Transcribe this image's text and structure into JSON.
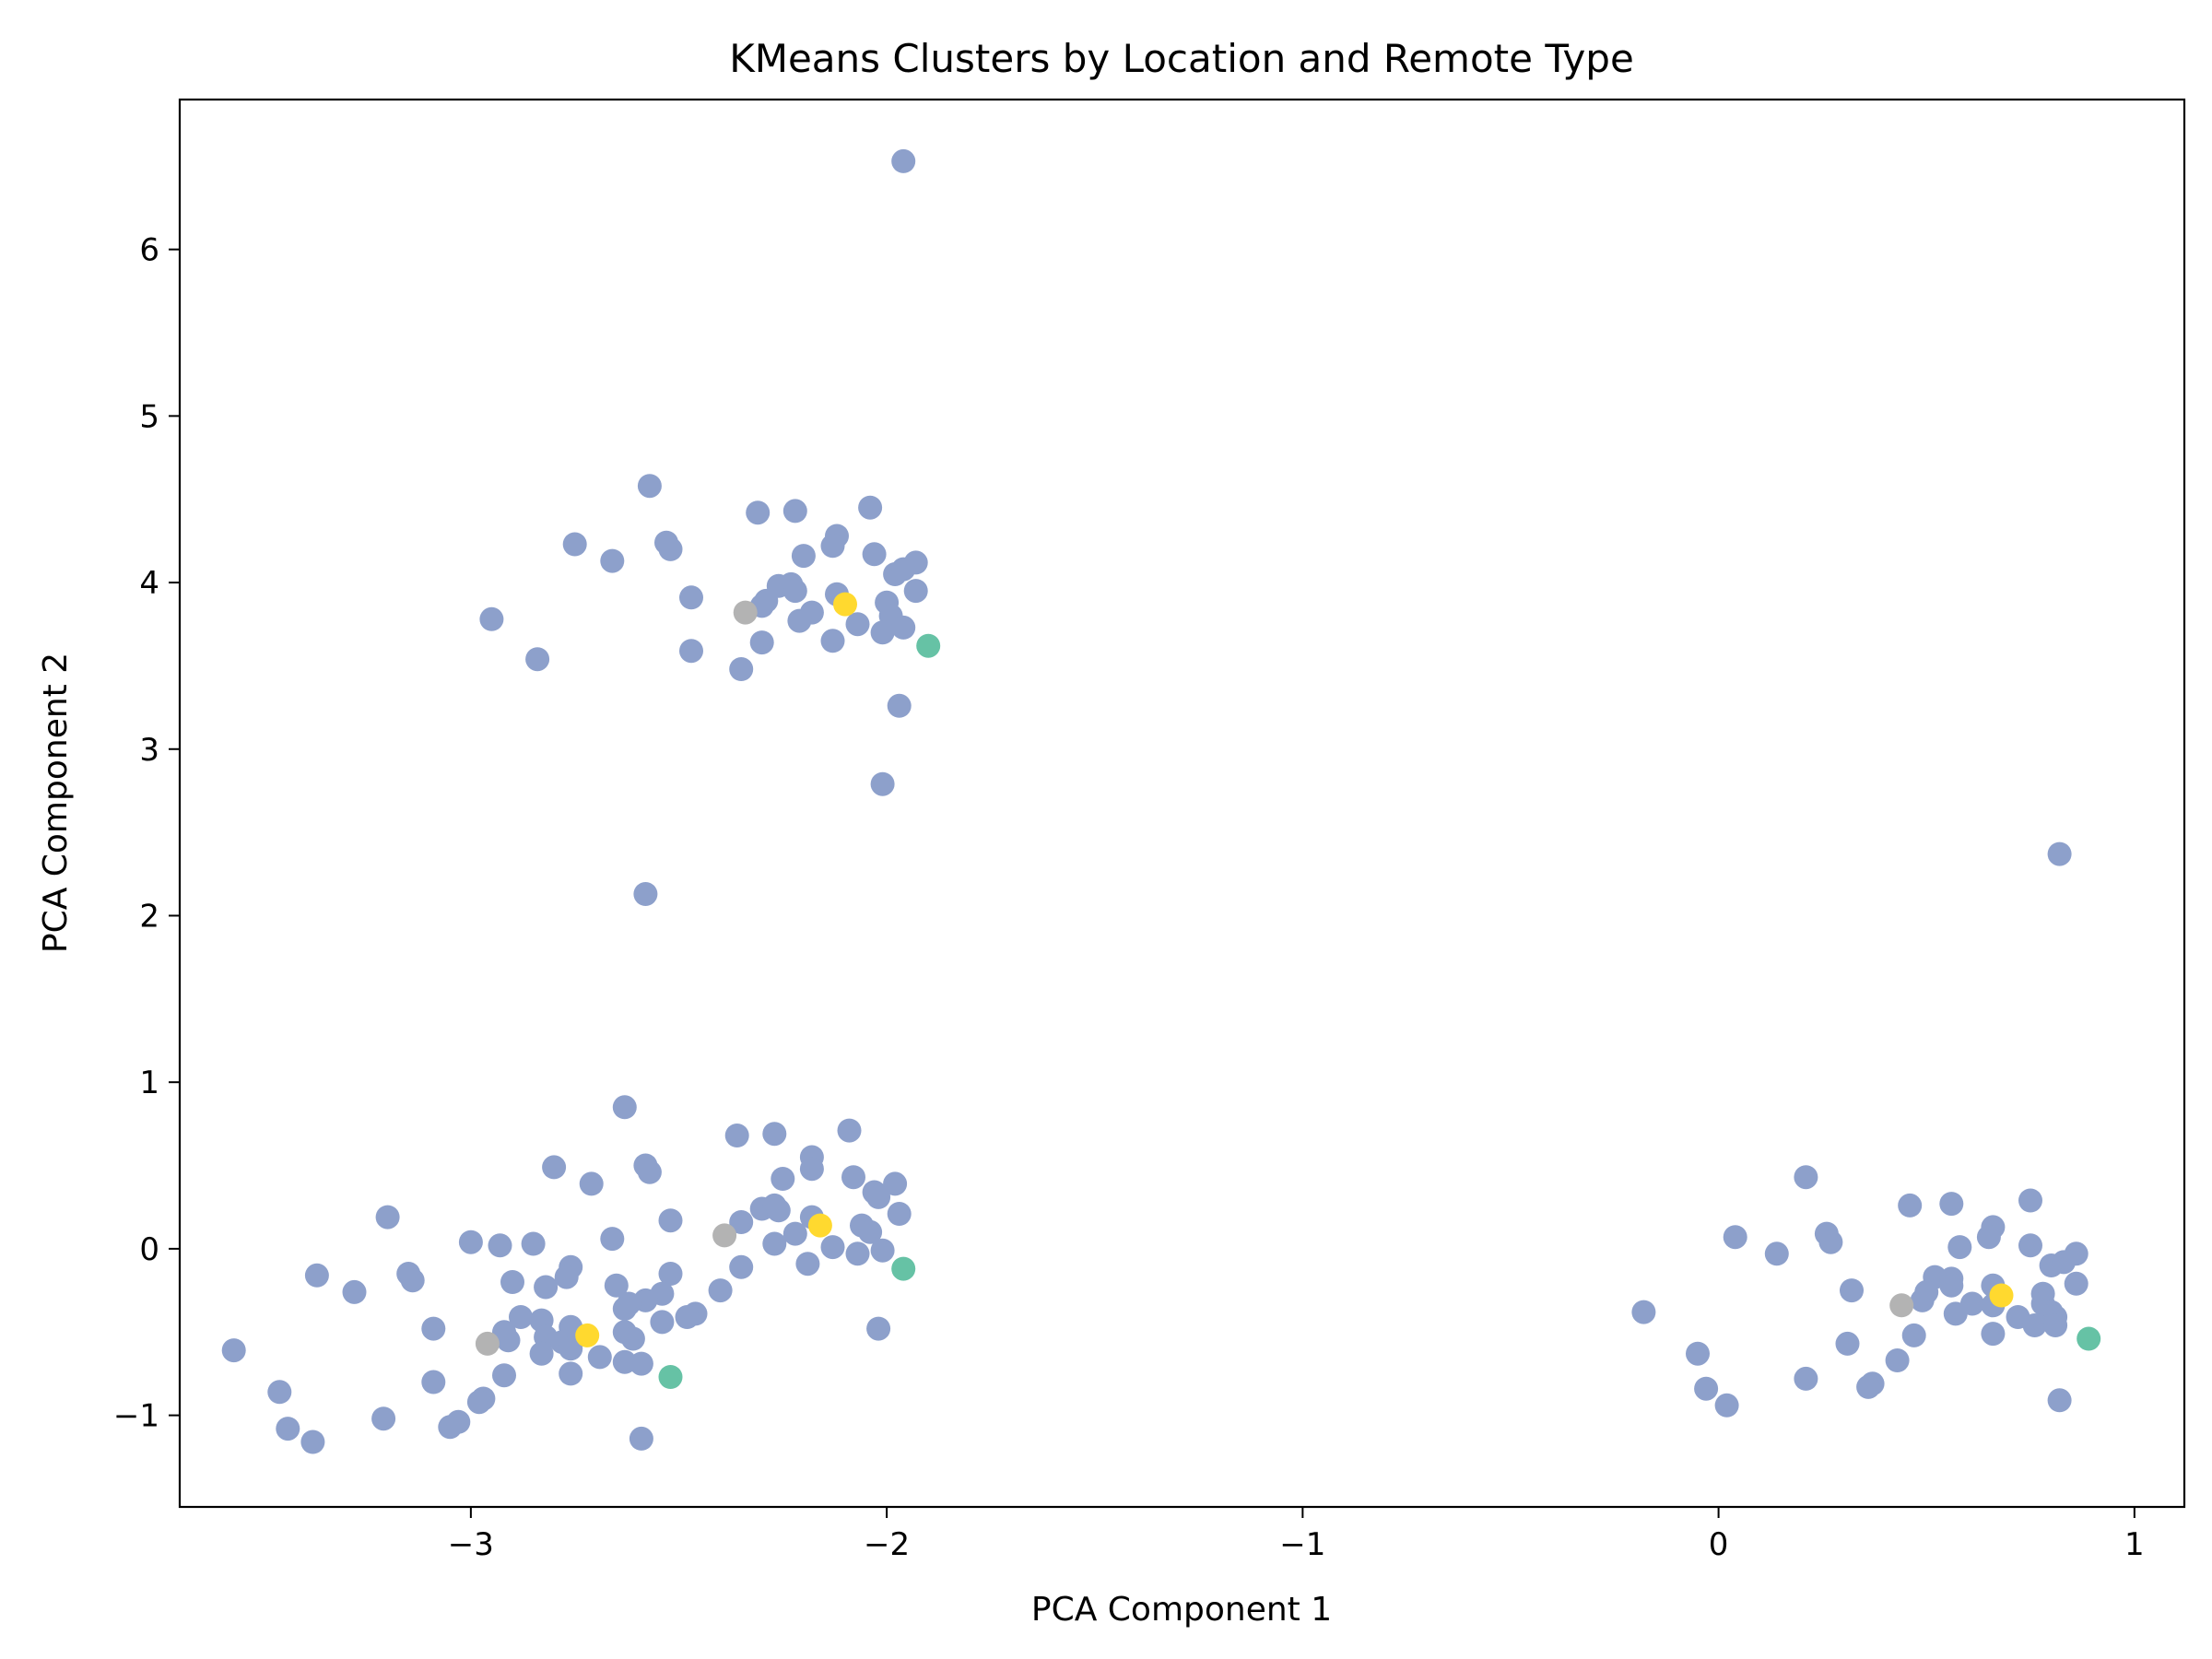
{
  "chart_data": {
    "type": "scatter",
    "title": "KMeans Clusters by Location and Remote Type",
    "xlabel": "PCA Component 1",
    "ylabel": "PCA Component 2",
    "xlim": [
      -3.7,
      1.12
    ],
    "ylim": [
      -1.55,
      6.9
    ],
    "xticks": [
      -3,
      -2,
      -1,
      0,
      1
    ],
    "yticks": [
      -1,
      0,
      1,
      2,
      3,
      4,
      5,
      6
    ],
    "grid": false,
    "legend": false,
    "colors": {
      "cluster_0": "#66c2a5",
      "cluster_1": "#8da0cb",
      "cluster_2": "#ffd92f",
      "cluster_3": "#b3b3b3"
    },
    "series": [
      {
        "color": "#8da0cb",
        "points": [
          [
            -1.96,
            6.53
          ],
          [
            -2.57,
            4.58
          ],
          [
            -2.31,
            4.42
          ],
          [
            -2.22,
            4.43
          ],
          [
            -2.04,
            4.45
          ],
          [
            -2.75,
            4.23
          ],
          [
            -2.66,
            4.13
          ],
          [
            -2.53,
            4.24
          ],
          [
            -2.52,
            4.2
          ],
          [
            -2.12,
            4.28
          ],
          [
            -2.13,
            4.22
          ],
          [
            -2.2,
            4.16
          ],
          [
            -2.03,
            4.17
          ],
          [
            -1.93,
            4.12
          ],
          [
            -1.98,
            4.05
          ],
          [
            -1.96,
            4.08
          ],
          [
            -2.26,
            3.98
          ],
          [
            -2.23,
            3.99
          ],
          [
            -2.22,
            3.95
          ],
          [
            -2.47,
            3.91
          ],
          [
            -2.12,
            3.93
          ],
          [
            -2.29,
            3.89
          ],
          [
            -2.3,
            3.86
          ],
          [
            -1.93,
            3.95
          ],
          [
            -2.0,
            3.88
          ],
          [
            -2.18,
            3.82
          ],
          [
            -2.21,
            3.77
          ],
          [
            -2.07,
            3.75
          ],
          [
            -1.99,
            3.8
          ],
          [
            -2.01,
            3.7
          ],
          [
            -1.96,
            3.73
          ],
          [
            -2.95,
            3.78
          ],
          [
            -2.13,
            3.65
          ],
          [
            -2.3,
            3.64
          ],
          [
            -2.47,
            3.59
          ],
          [
            -2.84,
            3.54
          ],
          [
            -2.35,
            3.48
          ],
          [
            -1.97,
            3.26
          ],
          [
            -2.01,
            2.79
          ],
          [
            -2.58,
            2.13
          ],
          [
            -2.63,
            0.85
          ],
          [
            -2.09,
            0.71
          ],
          [
            -2.27,
            0.69
          ],
          [
            -2.36,
            0.68
          ],
          [
            -2.18,
            0.55
          ],
          [
            -2.8,
            0.49
          ],
          [
            -2.58,
            0.5
          ],
          [
            -2.57,
            0.46
          ],
          [
            -2.18,
            0.48
          ],
          [
            -2.08,
            0.43
          ],
          [
            -2.25,
            0.42
          ],
          [
            -2.71,
            0.39
          ],
          [
            -1.98,
            0.39
          ],
          [
            -2.03,
            0.34
          ],
          [
            -2.02,
            0.31
          ],
          [
            -2.3,
            0.24
          ],
          [
            -2.27,
            0.26
          ],
          [
            -2.26,
            0.23
          ],
          [
            -1.97,
            0.21
          ],
          [
            -3.2,
            0.19
          ],
          [
            -2.18,
            0.19
          ],
          [
            -2.52,
            0.17
          ],
          [
            -2.35,
            0.16
          ],
          [
            -2.06,
            0.14
          ],
          [
            -2.04,
            0.1
          ],
          [
            -2.22,
            0.09
          ],
          [
            -2.27,
            0.03
          ],
          [
            -2.66,
            0.06
          ],
          [
            -3.0,
            0.04
          ],
          [
            -2.93,
            0.02
          ],
          [
            -2.85,
            0.03
          ],
          [
            -2.13,
            0.01
          ],
          [
            -2.07,
            -0.03
          ],
          [
            -2.01,
            -0.01
          ],
          [
            -2.19,
            -0.09
          ],
          [
            -2.35,
            -0.11
          ],
          [
            -2.76,
            -0.11
          ],
          [
            -3.37,
            -0.16
          ],
          [
            -3.15,
            -0.15
          ],
          [
            -3.14,
            -0.19
          ],
          [
            -2.9,
            -0.2
          ],
          [
            -2.77,
            -0.17
          ],
          [
            -2.52,
            -0.15
          ],
          [
            -2.82,
            -0.23
          ],
          [
            -2.65,
            -0.22
          ],
          [
            -3.28,
            -0.26
          ],
          [
            -2.4,
            -0.25
          ],
          [
            -2.54,
            -0.27
          ],
          [
            -2.58,
            -0.31
          ],
          [
            -2.62,
            -0.33
          ],
          [
            -2.63,
            -0.36
          ],
          [
            -2.46,
            -0.39
          ],
          [
            -2.48,
            -0.41
          ],
          [
            -2.54,
            -0.44
          ],
          [
            -2.88,
            -0.41
          ],
          [
            -2.83,
            -0.43
          ],
          [
            -2.76,
            -0.47
          ],
          [
            -3.09,
            -0.48
          ],
          [
            -2.02,
            -0.48
          ],
          [
            -2.92,
            -0.5
          ],
          [
            -2.63,
            -0.5
          ],
          [
            -2.61,
            -0.54
          ],
          [
            -2.91,
            -0.55
          ],
          [
            -2.82,
            -0.53
          ],
          [
            -2.78,
            -0.56
          ],
          [
            -2.76,
            -0.6
          ],
          [
            -2.83,
            -0.63
          ],
          [
            -2.69,
            -0.65
          ],
          [
            -2.63,
            -0.68
          ],
          [
            -2.59,
            -0.69
          ],
          [
            -3.57,
            -0.61
          ],
          [
            -2.92,
            -0.76
          ],
          [
            -2.76,
            -0.75
          ],
          [
            -3.09,
            -0.8
          ],
          [
            -3.46,
            -0.86
          ],
          [
            -2.97,
            -0.9
          ],
          [
            -2.98,
            -0.92
          ],
          [
            -3.21,
            -1.02
          ],
          [
            -3.03,
            -1.04
          ],
          [
            -3.05,
            -1.07
          ],
          [
            -3.44,
            -1.08
          ],
          [
            -3.38,
            -1.16
          ],
          [
            -2.59,
            -1.14
          ],
          [
            0.82,
            2.37
          ],
          [
            0.21,
            0.43
          ],
          [
            0.75,
            0.29
          ],
          [
            0.56,
            0.27
          ],
          [
            0.46,
            0.26
          ],
          [
            0.66,
            0.13
          ],
          [
            0.65,
            0.07
          ],
          [
            0.26,
            0.09
          ],
          [
            0.04,
            0.07
          ],
          [
            0.27,
            0.04
          ],
          [
            0.58,
            0.01
          ],
          [
            0.75,
            0.02
          ],
          [
            0.14,
            -0.03
          ],
          [
            0.86,
            -0.03
          ],
          [
            0.8,
            -0.1
          ],
          [
            0.83,
            -0.08
          ],
          [
            0.52,
            -0.17
          ],
          [
            0.56,
            -0.18
          ],
          [
            0.86,
            -0.21
          ],
          [
            0.56,
            -0.22
          ],
          [
            0.66,
            -0.22
          ],
          [
            0.32,
            -0.25
          ],
          [
            0.5,
            -0.26
          ],
          [
            0.78,
            -0.27
          ],
          [
            0.49,
            -0.31
          ],
          [
            0.61,
            -0.33
          ],
          [
            0.66,
            -0.34
          ],
          [
            0.78,
            -0.33
          ],
          [
            0.8,
            -0.38
          ],
          [
            0.72,
            -0.41
          ],
          [
            0.57,
            -0.39
          ],
          [
            0.81,
            -0.41
          ],
          [
            0.76,
            -0.46
          ],
          [
            0.81,
            -0.46
          ],
          [
            -0.18,
            -0.38
          ],
          [
            0.66,
            -0.51
          ],
          [
            0.47,
            -0.52
          ],
          [
            0.31,
            -0.57
          ],
          [
            -0.05,
            -0.63
          ],
          [
            0.43,
            -0.67
          ],
          [
            0.21,
            -0.78
          ],
          [
            0.37,
            -0.81
          ],
          [
            0.36,
            -0.83
          ],
          [
            -0.03,
            -0.84
          ],
          [
            0.82,
            -0.91
          ],
          [
            0.02,
            -0.94
          ]
        ]
      },
      {
        "color": "#ffd92f",
        "points": [
          [
            -2.1,
            3.87
          ],
          [
            -2.16,
            0.14
          ],
          [
            -2.72,
            -0.52
          ],
          [
            0.68,
            -0.28
          ]
        ]
      },
      {
        "color": "#b3b3b3",
        "points": [
          [
            -2.34,
            3.82
          ],
          [
            -2.39,
            0.08
          ],
          [
            -2.96,
            -0.57
          ],
          [
            0.44,
            -0.34
          ]
        ]
      },
      {
        "color": "#66c2a5",
        "points": [
          [
            -1.9,
            3.62
          ],
          [
            -1.96,
            -0.12
          ],
          [
            -2.52,
            -0.77
          ],
          [
            0.89,
            -0.54
          ]
        ]
      }
    ]
  }
}
